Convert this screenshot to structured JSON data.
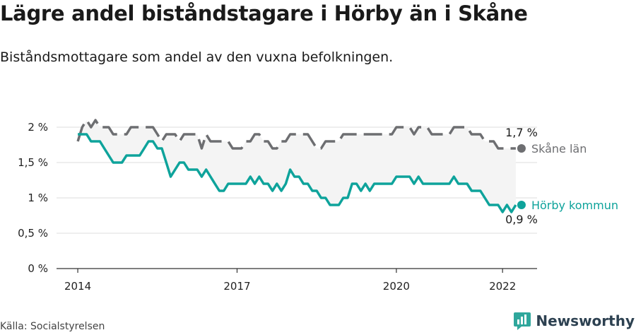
{
  "title": "Lägre andel biståndstagare i Hörby än i Skåne",
  "subtitle": "Biståndsmottagare som andel av den vuxna befolkningen.",
  "source": "Källa: Socialstyrelsen",
  "brand": {
    "name": "Newsworthy",
    "icon": "newsworthy-logo-icon"
  },
  "colors": {
    "skane": "#6d6e71",
    "horby": "#0ea39b",
    "band": "#f4f4f4",
    "grid": "#dddddd"
  },
  "chart_data": {
    "type": "line",
    "ylim": [
      0,
      2.2
    ],
    "yticks": [
      0,
      0.5,
      1,
      1.5,
      2
    ],
    "ytick_labels": [
      "0 %",
      "0,5 %",
      "1 %",
      "1,5 %",
      "2 %"
    ],
    "xlim": [
      2013.6,
      2022.65
    ],
    "xticks": [
      2014,
      2017,
      2020,
      2022
    ],
    "xtick_labels": [
      "2014",
      "2017",
      "2020",
      "2022"
    ],
    "series": [
      {
        "name": "Skåne län",
        "style": "dashed",
        "end_label": "1,7 %",
        "x": [
          2014.0,
          2014.083,
          2014.167,
          2014.25,
          2014.333,
          2014.417,
          2014.5,
          2014.583,
          2014.667,
          2014.75,
          2014.833,
          2014.917,
          2015.0,
          2015.083,
          2015.167,
          2015.25,
          2015.333,
          2015.417,
          2015.5,
          2015.583,
          2015.667,
          2015.75,
          2015.833,
          2015.917,
          2016.0,
          2016.083,
          2016.167,
          2016.25,
          2016.333,
          2016.417,
          2016.5,
          2016.583,
          2016.667,
          2016.75,
          2016.833,
          2016.917,
          2017.0,
          2017.083,
          2017.167,
          2017.25,
          2017.333,
          2017.417,
          2017.5,
          2017.583,
          2017.667,
          2017.75,
          2017.833,
          2017.917,
          2018.0,
          2018.083,
          2018.167,
          2018.25,
          2018.333,
          2018.417,
          2018.5,
          2018.583,
          2018.667,
          2018.75,
          2018.833,
          2018.917,
          2019.0,
          2019.083,
          2019.167,
          2019.25,
          2019.333,
          2019.417,
          2019.5,
          2019.583,
          2019.667,
          2019.75,
          2019.833,
          2019.917,
          2020.0,
          2020.083,
          2020.167,
          2020.25,
          2020.333,
          2020.417,
          2020.5,
          2020.583,
          2020.667,
          2020.75,
          2020.833,
          2020.917,
          2021.0,
          2021.083,
          2021.167,
          2021.25,
          2021.333,
          2021.417,
          2021.5,
          2021.583,
          2021.667,
          2021.75,
          2021.833,
          2021.917,
          2022.0,
          2022.083,
          2022.167,
          2022.25
        ],
        "y": [
          1.8,
          2.0,
          2.1,
          2.0,
          2.1,
          2.0,
          2.0,
          2.0,
          1.9,
          1.9,
          1.9,
          1.9,
          2.0,
          2.0,
          2.0,
          2.0,
          2.0,
          2.0,
          1.9,
          1.8,
          1.9,
          1.9,
          1.9,
          1.8,
          1.9,
          1.9,
          1.9,
          1.9,
          1.7,
          1.9,
          1.8,
          1.8,
          1.8,
          1.8,
          1.8,
          1.7,
          1.7,
          1.7,
          1.8,
          1.8,
          1.9,
          1.9,
          1.8,
          1.8,
          1.7,
          1.7,
          1.8,
          1.8,
          1.9,
          1.9,
          1.9,
          1.9,
          1.9,
          1.8,
          1.7,
          1.7,
          1.8,
          1.8,
          1.8,
          1.8,
          1.9,
          1.9,
          1.9,
          1.9,
          1.9,
          1.9,
          1.9,
          1.9,
          1.9,
          1.9,
          1.9,
          1.9,
          2.0,
          2.0,
          2.0,
          2.0,
          1.9,
          2.0,
          2.0,
          2.0,
          1.9,
          1.9,
          1.9,
          1.9,
          1.9,
          2.0,
          2.0,
          2.0,
          2.0,
          1.9,
          1.9,
          1.9,
          1.8,
          1.8,
          1.8,
          1.7,
          1.7,
          1.7,
          1.7,
          1.7
        ]
      },
      {
        "name": "Hörby kommun",
        "style": "solid",
        "end_label": "0,9 %",
        "x": [
          2014.0,
          2014.083,
          2014.167,
          2014.25,
          2014.333,
          2014.417,
          2014.5,
          2014.583,
          2014.667,
          2014.75,
          2014.833,
          2014.917,
          2015.0,
          2015.083,
          2015.167,
          2015.25,
          2015.333,
          2015.417,
          2015.5,
          2015.583,
          2015.667,
          2015.75,
          2015.833,
          2015.917,
          2016.0,
          2016.083,
          2016.167,
          2016.25,
          2016.333,
          2016.417,
          2016.5,
          2016.583,
          2016.667,
          2016.75,
          2016.833,
          2016.917,
          2017.0,
          2017.083,
          2017.167,
          2017.25,
          2017.333,
          2017.417,
          2017.5,
          2017.583,
          2017.667,
          2017.75,
          2017.833,
          2017.917,
          2018.0,
          2018.083,
          2018.167,
          2018.25,
          2018.333,
          2018.417,
          2018.5,
          2018.583,
          2018.667,
          2018.75,
          2018.833,
          2018.917,
          2019.0,
          2019.083,
          2019.167,
          2019.25,
          2019.333,
          2019.417,
          2019.5,
          2019.583,
          2019.667,
          2019.75,
          2019.833,
          2019.917,
          2020.0,
          2020.083,
          2020.167,
          2020.25,
          2020.333,
          2020.417,
          2020.5,
          2020.583,
          2020.667,
          2020.75,
          2020.833,
          2020.917,
          2021.0,
          2021.083,
          2021.167,
          2021.25,
          2021.333,
          2021.417,
          2021.5,
          2021.583,
          2021.667,
          2021.75,
          2021.833,
          2021.917,
          2022.0,
          2022.083,
          2022.167,
          2022.25
        ],
        "y": [
          1.9,
          1.9,
          1.9,
          1.8,
          1.8,
          1.8,
          1.7,
          1.6,
          1.5,
          1.5,
          1.5,
          1.6,
          1.6,
          1.6,
          1.6,
          1.7,
          1.8,
          1.8,
          1.7,
          1.7,
          1.5,
          1.3,
          1.4,
          1.5,
          1.5,
          1.4,
          1.4,
          1.4,
          1.3,
          1.4,
          1.3,
          1.2,
          1.1,
          1.1,
          1.2,
          1.2,
          1.2,
          1.2,
          1.2,
          1.3,
          1.2,
          1.3,
          1.2,
          1.2,
          1.1,
          1.2,
          1.1,
          1.2,
          1.4,
          1.3,
          1.3,
          1.2,
          1.2,
          1.1,
          1.1,
          1.0,
          1.0,
          0.9,
          0.9,
          0.9,
          1.0,
          1.0,
          1.2,
          1.2,
          1.1,
          1.2,
          1.1,
          1.2,
          1.2,
          1.2,
          1.2,
          1.2,
          1.3,
          1.3,
          1.3,
          1.3,
          1.2,
          1.3,
          1.2,
          1.2,
          1.2,
          1.2,
          1.2,
          1.2,
          1.2,
          1.3,
          1.2,
          1.2,
          1.2,
          1.1,
          1.1,
          1.1,
          1.0,
          0.9,
          0.9,
          0.9,
          0.8,
          0.9,
          0.8,
          0.9
        ]
      }
    ]
  }
}
